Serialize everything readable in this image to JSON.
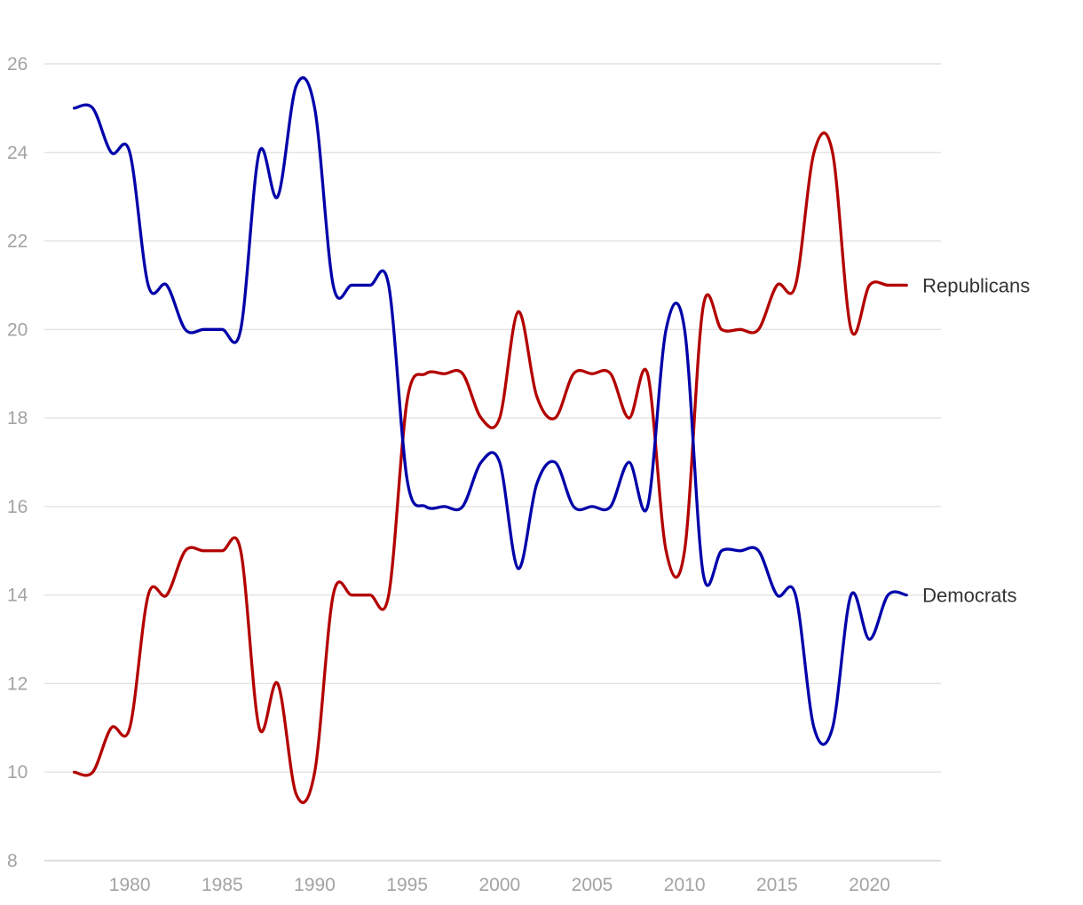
{
  "chart_data": {
    "type": "line",
    "xlim": [
      1976.2,
      2023.0
    ],
    "ylim": [
      8,
      26
    ],
    "yticks": [
      8,
      10,
      12,
      14,
      16,
      18,
      20,
      22,
      24,
      26
    ],
    "xticks": [
      1980,
      1985,
      1990,
      1995,
      2000,
      2005,
      2010,
      2015,
      2020
    ],
    "grid": true,
    "legend": "direct labels at line ends",
    "x": [
      1977,
      1978,
      1979,
      1980,
      1981,
      1982,
      1983,
      1984,
      1985,
      1986,
      1987,
      1988,
      1989,
      1990,
      1991,
      1992,
      1993,
      1994,
      1995,
      1996,
      1997,
      1998,
      1999,
      2000,
      2001,
      2002,
      2003,
      2004,
      2005,
      2006,
      2007,
      2008,
      2009,
      2010,
      2011,
      2012,
      2013,
      2014,
      2015,
      2016,
      2017,
      2018,
      2019,
      2020,
      2021,
      2022
    ],
    "series": [
      {
        "name": "Republicans",
        "color": "#b30000",
        "values": [
          10,
          10,
          11,
          11,
          14,
          14,
          15,
          15,
          15,
          15,
          11,
          12,
          9.5,
          10,
          14,
          14,
          14,
          14,
          18.4,
          19,
          19,
          19,
          18,
          18,
          20.4,
          18.5,
          18,
          19,
          19,
          19,
          18,
          19,
          15,
          15,
          20.5,
          20,
          20,
          20,
          21,
          21,
          24,
          24,
          20,
          21,
          21,
          21
        ]
      },
      {
        "name": "Democrats",
        "color": "#0000aa",
        "values": [
          25,
          25,
          24,
          24,
          21,
          21,
          20,
          20,
          20,
          20,
          24,
          23,
          25.5,
          25,
          21,
          21,
          21,
          21,
          16.6,
          16,
          16,
          16,
          17,
          17,
          14.6,
          16.5,
          17,
          16,
          16,
          16,
          17,
          16,
          20,
          20,
          14.5,
          15,
          15,
          15,
          14,
          14,
          11,
          11,
          14,
          13,
          14,
          14
        ]
      }
    ]
  }
}
